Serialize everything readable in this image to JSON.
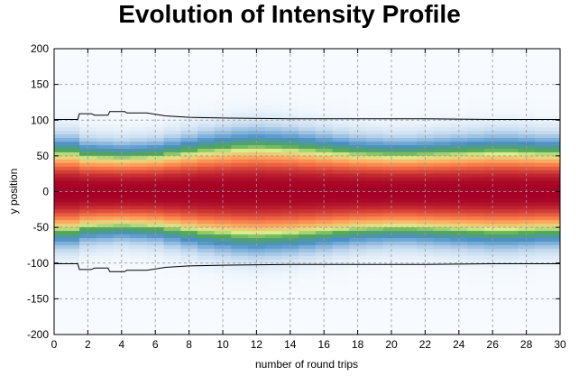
{
  "chart_data": {
    "type": "heatmap",
    "title": "Evolution of Intensity Profile",
    "xlabel": "number of round trips",
    "ylabel": "y position",
    "xlim": [
      0,
      30
    ],
    "ylim": [
      -200,
      200
    ],
    "xticks": [
      0,
      2,
      4,
      6,
      8,
      10,
      12,
      14,
      16,
      18,
      20,
      22,
      24,
      26,
      28,
      30
    ],
    "yticks": [
      200,
      150,
      100,
      50,
      0,
      -50,
      -100,
      -150,
      -200
    ],
    "grid": true,
    "colormap": [
      "#f7fbff",
      "#c6dbef",
      "#4a90c8",
      "#52a84f",
      "#d9ef8b",
      "#fdae61",
      "#f46d43",
      "#a50026"
    ],
    "x_samples": [
      0,
      1,
      2,
      3,
      4,
      5,
      6,
      7,
      8,
      9,
      10,
      11,
      12,
      13,
      14,
      15,
      16,
      17,
      18,
      19,
      20,
      21,
      22,
      23,
      24,
      25,
      26,
      27,
      28,
      29,
      30
    ],
    "beam_width": [
      62,
      62,
      57,
      56,
      55,
      56,
      57,
      60,
      63,
      66,
      68,
      70,
      71,
      70,
      69,
      67,
      65,
      63,
      61,
      60,
      59,
      59,
      60,
      61,
      62,
      63,
      64,
      64,
      63,
      62,
      62
    ],
    "boundary_contour": {
      "x": [
        0,
        1.4,
        1.5,
        2.2,
        2.4,
        3.2,
        3.3,
        4.2,
        4.3,
        5.5,
        6.6,
        8,
        10,
        14,
        18,
        22,
        26,
        30
      ],
      "y": [
        101,
        101,
        109,
        109,
        107,
        107,
        112,
        112,
        110,
        110,
        106,
        104,
        103,
        102,
        102,
        102,
        101,
        101
      ]
    }
  }
}
